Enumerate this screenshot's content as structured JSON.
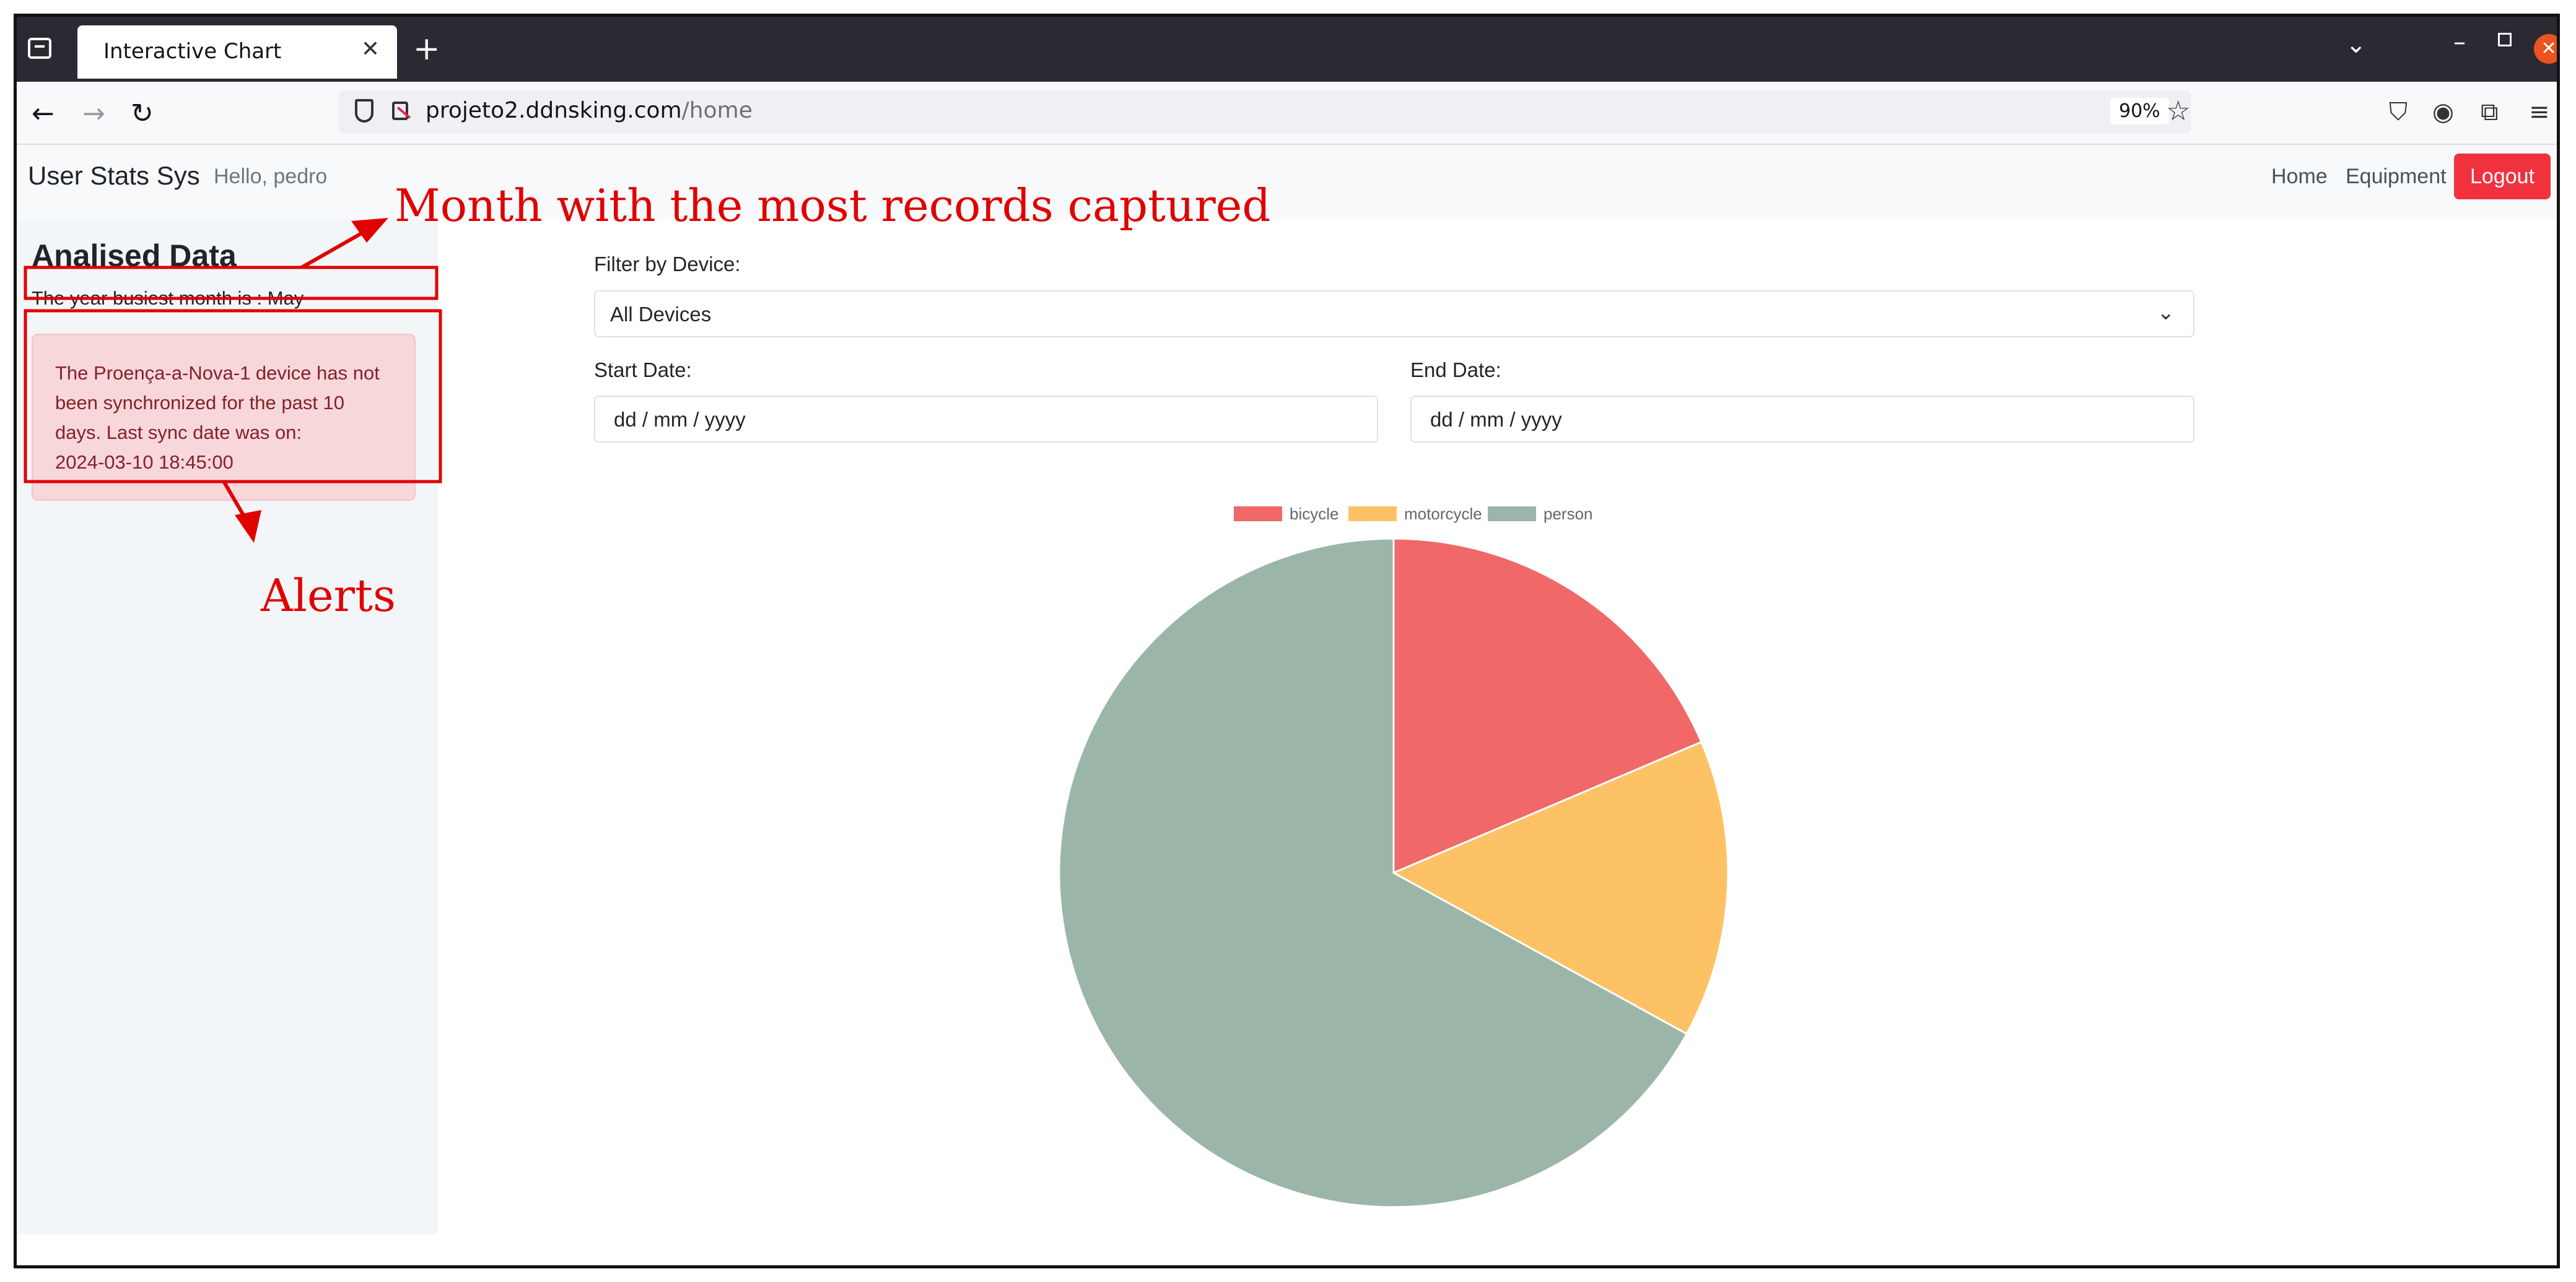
{
  "browser": {
    "tab_title": "Interactive Chart",
    "url_host": "projeto2.ddnsking.com",
    "url_path": "/home",
    "zoom": "90%"
  },
  "navbar": {
    "brand": "User Stats Sys",
    "greeting": "Hello, pedro",
    "links": [
      "Home",
      "Equipment"
    ],
    "logout_label": "Logout",
    "logout_color": "#f0323f"
  },
  "sidebar": {
    "title": "Analised Data",
    "busiest_month_text": "The year busiest month is : May",
    "alert": {
      "lines": [
        "The Proença-a-Nova-1 device has not",
        "been synchronized for the past 10",
        "days. Last sync date was on:",
        "2024-03-10 18:45:00"
      ]
    }
  },
  "filters": {
    "device_label": "Filter by Device:",
    "device_selected": "All Devices",
    "start_label": "Start Date:",
    "start_placeholder": "dd / mm / yyyy",
    "end_label": "End Date:",
    "end_placeholder": "dd / mm / yyyy"
  },
  "annotations": {
    "month_callout": "Month with the most records captured",
    "alerts_callout": "Alerts",
    "color": "#e00000"
  },
  "chart_data": {
    "type": "pie",
    "categories": [
      "bicycle",
      "motorcycle",
      "person"
    ],
    "values": [
      18.6,
      14.4,
      67.0
    ],
    "colors": [
      "#f06868",
      "#fdc265",
      "#9bb6a9"
    ],
    "legend_position": "top"
  }
}
